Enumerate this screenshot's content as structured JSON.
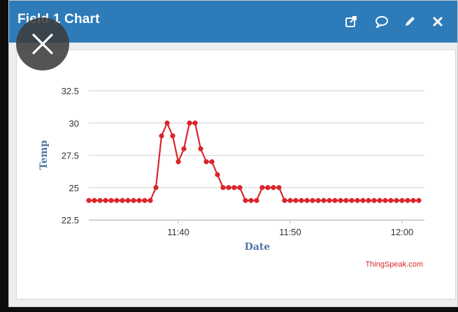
{
  "widget": {
    "title": "Field 1 Chart",
    "toolbar": [
      {
        "name": "open-in-new-window-icon"
      },
      {
        "name": "comment-icon"
      },
      {
        "name": "edit-pencil-icon"
      },
      {
        "name": "close-x-icon"
      }
    ]
  },
  "overlay": {
    "icon": "close-icon"
  },
  "colors": {
    "titlebar": "#2e7bb9",
    "series": "#d9262c",
    "axis_label": "#4d76a5",
    "gridline": "#d9d9d9"
  },
  "credit": "ThingSpeak.com",
  "chart_data": {
    "type": "line",
    "title": "",
    "xlabel": "Date",
    "ylabel": "Temp",
    "ylim": [
      22.5,
      32.5
    ],
    "yticks": [
      "22.5",
      "25",
      "27.5",
      "30",
      "32.5"
    ],
    "ytick_values": [
      22.5,
      25,
      27.5,
      30,
      32.5
    ],
    "xticks": [
      "11:40",
      "11:50",
      "12:00"
    ],
    "xtick_values": [
      "11:40",
      "11:50",
      "12:00"
    ],
    "x_range": [
      "11:32",
      "12:02"
    ],
    "grid": true,
    "series": [
      {
        "x": [
          "11:32",
          "11:32",
          "11:33",
          "11:33",
          "11:34",
          "11:34",
          "11:35",
          "11:35",
          "11:36",
          "11:36",
          "11:37",
          "11:37",
          "11:38",
          "11:38",
          "11:39",
          "11:39",
          "11:40",
          "11:40",
          "11:41",
          "11:41",
          "11:42",
          "11:42",
          "11:43",
          "11:43",
          "11:44",
          "11:44",
          "11:45",
          "11:45",
          "11:46",
          "11:46",
          "11:47",
          "11:47",
          "11:48",
          "11:48",
          "11:49",
          "11:49",
          "11:50",
          "11:50",
          "11:51",
          "11:51",
          "11:52",
          "11:52",
          "11:53",
          "11:53",
          "11:54",
          "11:54",
          "11:55",
          "11:55",
          "11:56",
          "11:56",
          "11:57",
          "11:57",
          "11:58",
          "11:58",
          "11:59",
          "11:59",
          "12:00",
          "12:00",
          "12:01",
          "12:01"
        ],
        "values": [
          24,
          24,
          24,
          24,
          24,
          24,
          24,
          24,
          24,
          24,
          24,
          24,
          25,
          29,
          30,
          29,
          27,
          28,
          30,
          30,
          28,
          27,
          27,
          26,
          25,
          25,
          25,
          25,
          24,
          24,
          24,
          25,
          25,
          25,
          25,
          24,
          24,
          24,
          24,
          24,
          24,
          24,
          24,
          24,
          24,
          24,
          24,
          24,
          24,
          24,
          24,
          24,
          24,
          24,
          24,
          24,
          24,
          24,
          24,
          24
        ]
      }
    ]
  }
}
